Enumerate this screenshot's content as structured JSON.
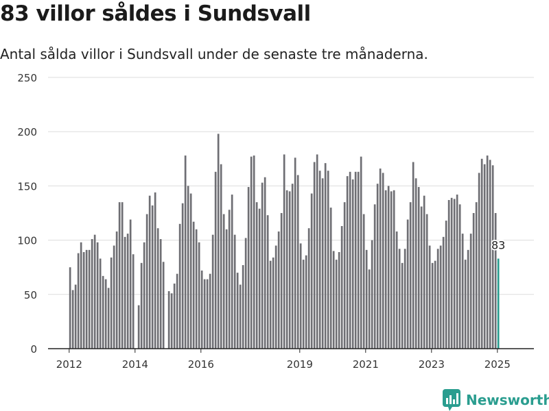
{
  "title": "83 villor såldes i Sundsvall",
  "subtitle": "Antal sålda villor i Sundsvall under de senaste tre månaderna.",
  "brand": "Newsworthy",
  "colors": {
    "bar": "#6e6e73",
    "highlight": "#2a9d8f",
    "grid": "#dddddd",
    "axis": "#222222",
    "text": "#333333"
  },
  "chart_data": {
    "type": "bar",
    "x_start": "2012-01",
    "x_step": "1 month",
    "ylim": [
      0,
      250
    ],
    "yticks": [
      0,
      50,
      100,
      150,
      200,
      250
    ],
    "xticks": [
      "2012",
      "2014",
      "2016",
      "2019",
      "2021",
      "2023",
      "2025"
    ],
    "xlabel": "",
    "ylabel": "",
    "grid": true,
    "highlight_label": "83",
    "values": [
      75,
      54,
      59,
      88,
      98,
      89,
      91,
      91,
      101,
      105,
      98,
      83,
      67,
      64,
      56,
      84,
      95,
      108,
      135,
      135,
      103,
      106,
      119,
      87,
      0,
      40,
      79,
      98,
      124,
      141,
      132,
      144,
      111,
      101,
      80,
      0,
      53,
      51,
      60,
      69,
      115,
      134,
      178,
      150,
      143,
      117,
      110,
      98,
      72,
      64,
      64,
      69,
      105,
      163,
      198,
      170,
      124,
      110,
      128,
      142,
      105,
      70,
      59,
      77,
      102,
      149,
      177,
      178,
      135,
      129,
      153,
      158,
      123,
      81,
      84,
      95,
      108,
      125,
      179,
      146,
      145,
      152,
      176,
      160,
      97,
      82,
      86,
      111,
      143,
      172,
      179,
      164,
      157,
      171,
      164,
      130,
      90,
      82,
      89,
      113,
      135,
      159,
      163,
      156,
      163,
      163,
      177,
      124,
      91,
      73,
      100,
      133,
      152,
      166,
      162,
      146,
      150,
      145,
      146,
      108,
      92,
      79,
      92,
      119,
      135,
      172,
      157,
      149,
      131,
      141,
      124,
      95,
      79,
      81,
      92,
      95,
      103,
      118,
      137,
      139,
      138,
      142,
      133,
      106,
      82,
      91,
      106,
      125,
      135,
      162,
      175,
      170,
      178,
      174,
      169,
      125,
      83
    ]
  }
}
